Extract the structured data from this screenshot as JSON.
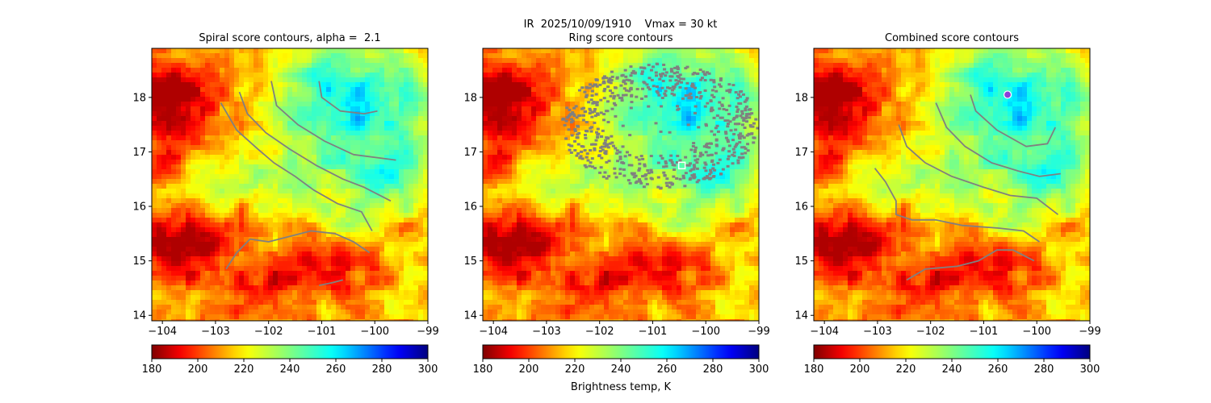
{
  "figure": {
    "suptitle": "IR  2025/10/09/1910    Vmax = 30 kt",
    "colorbar_label": "Brightness temp, K"
  },
  "chart_data": [
    {
      "type": "heatmap",
      "title": "Spiral score contours, alpha =  2.1",
      "x_ticks": [
        -104,
        -103,
        -102,
        -101,
        -100,
        -99
      ],
      "y_ticks": [
        14,
        15,
        16,
        17,
        18
      ],
      "xlim": [
        -104.2,
        -99
      ],
      "ylim": [
        13.9,
        18.9
      ],
      "colormap": "jet_r",
      "clim": [
        180,
        300
      ],
      "colorbar_ticks": [
        180,
        200,
        220,
        240,
        260,
        280,
        300
      ],
      "contour_color": "#808080",
      "contours": [
        [
          [
            -102.9,
            17.9
          ],
          [
            -102.6,
            17.4
          ],
          [
            -102.2,
            17.05
          ],
          [
            -101.9,
            16.8
          ],
          [
            -101.5,
            16.55
          ],
          [
            -101.15,
            16.3
          ],
          [
            -100.7,
            16.05
          ],
          [
            -100.25,
            15.9
          ],
          [
            -100.05,
            15.55
          ]
        ],
        [
          [
            -102.55,
            18.1
          ],
          [
            -102.4,
            17.7
          ],
          [
            -102.05,
            17.35
          ],
          [
            -101.6,
            17.05
          ],
          [
            -101.1,
            16.75
          ],
          [
            -100.6,
            16.5
          ],
          [
            -100.2,
            16.35
          ],
          [
            -99.7,
            16.1
          ]
        ],
        [
          [
            -101.95,
            18.3
          ],
          [
            -101.85,
            17.85
          ],
          [
            -101.45,
            17.5
          ],
          [
            -100.95,
            17.2
          ],
          [
            -100.4,
            16.95
          ],
          [
            -99.6,
            16.85
          ]
        ],
        [
          [
            -101.05,
            18.3
          ],
          [
            -101.0,
            18.0
          ],
          [
            -100.65,
            17.75
          ],
          [
            -100.2,
            17.7
          ],
          [
            -99.95,
            17.75
          ]
        ],
        [
          [
            -102.8,
            14.85
          ],
          [
            -102.6,
            15.15
          ],
          [
            -102.35,
            15.4
          ],
          [
            -102.0,
            15.35
          ],
          [
            -101.6,
            15.45
          ],
          [
            -101.2,
            15.55
          ],
          [
            -100.75,
            15.5
          ],
          [
            -100.4,
            15.35
          ],
          [
            -100.1,
            15.15
          ]
        ],
        [
          [
            -101.05,
            14.55
          ],
          [
            -100.8,
            14.6
          ],
          [
            -100.6,
            14.65
          ]
        ]
      ],
      "markers": []
    },
    {
      "type": "heatmap",
      "title": "Ring score contours",
      "x_ticks": [
        -104,
        -103,
        -102,
        -101,
        -100,
        -99
      ],
      "y_ticks": [
        14,
        15,
        16,
        17,
        18
      ],
      "xlim": [
        -104.2,
        -99
      ],
      "ylim": [
        13.9,
        18.9
      ],
      "colormap": "jet_r",
      "clim": [
        180,
        300
      ],
      "colorbar_ticks": [
        180,
        200,
        220,
        240,
        260,
        280,
        300
      ],
      "contour_color": "#808080",
      "ring_region": {
        "center": [
          -100.9,
          17.5
        ],
        "outer_radius": [
          1.85,
          1.15
        ],
        "inner_radius": [
          1.05,
          0.55
        ]
      },
      "markers": [
        {
          "x": -100.45,
          "y": 16.75,
          "shape": "square",
          "color": "#ffffff"
        }
      ]
    },
    {
      "type": "heatmap",
      "title": "Combined score contours",
      "x_ticks": [
        -104,
        -103,
        -102,
        -101,
        -100,
        -99
      ],
      "y_ticks": [
        14,
        15,
        16,
        17,
        18
      ],
      "xlim": [
        -104.2,
        -99
      ],
      "ylim": [
        13.9,
        18.9
      ],
      "colormap": "jet_r",
      "clim": [
        180,
        300
      ],
      "colorbar_ticks": [
        180,
        200,
        220,
        240,
        260,
        280,
        300
      ],
      "contour_color": "#808080",
      "contours": [
        [
          [
            -103.05,
            16.7
          ],
          [
            -102.85,
            16.45
          ],
          [
            -102.65,
            16.1
          ],
          [
            -102.65,
            15.85
          ],
          [
            -102.35,
            15.75
          ],
          [
            -101.9,
            15.75
          ],
          [
            -101.4,
            15.65
          ],
          [
            -100.7,
            15.6
          ],
          [
            -100.25,
            15.55
          ],
          [
            -99.95,
            15.35
          ]
        ],
        [
          [
            -102.6,
            17.5
          ],
          [
            -102.45,
            17.1
          ],
          [
            -102.1,
            16.8
          ],
          [
            -101.6,
            16.55
          ],
          [
            -101.0,
            16.35
          ],
          [
            -100.5,
            16.2
          ],
          [
            -100.0,
            16.15
          ],
          [
            -99.6,
            15.85
          ]
        ],
        [
          [
            -101.9,
            17.9
          ],
          [
            -101.7,
            17.45
          ],
          [
            -101.35,
            17.1
          ],
          [
            -100.85,
            16.8
          ],
          [
            -100.35,
            16.65
          ],
          [
            -99.95,
            16.55
          ],
          [
            -99.55,
            16.6
          ]
        ],
        [
          [
            -101.25,
            18.05
          ],
          [
            -101.15,
            17.75
          ],
          [
            -100.75,
            17.4
          ],
          [
            -100.2,
            17.1
          ],
          [
            -99.8,
            17.15
          ],
          [
            -99.65,
            17.45
          ]
        ],
        [
          [
            -102.45,
            14.65
          ],
          [
            -102.1,
            14.85
          ],
          [
            -101.5,
            14.9
          ],
          [
            -101.1,
            15.0
          ],
          [
            -100.75,
            15.2
          ],
          [
            -100.45,
            15.2
          ],
          [
            -100.05,
            15.0
          ]
        ]
      ],
      "markers": [
        {
          "x": -100.55,
          "y": 18.05,
          "shape": "circle",
          "color": "#8b3fd9"
        }
      ]
    }
  ]
}
